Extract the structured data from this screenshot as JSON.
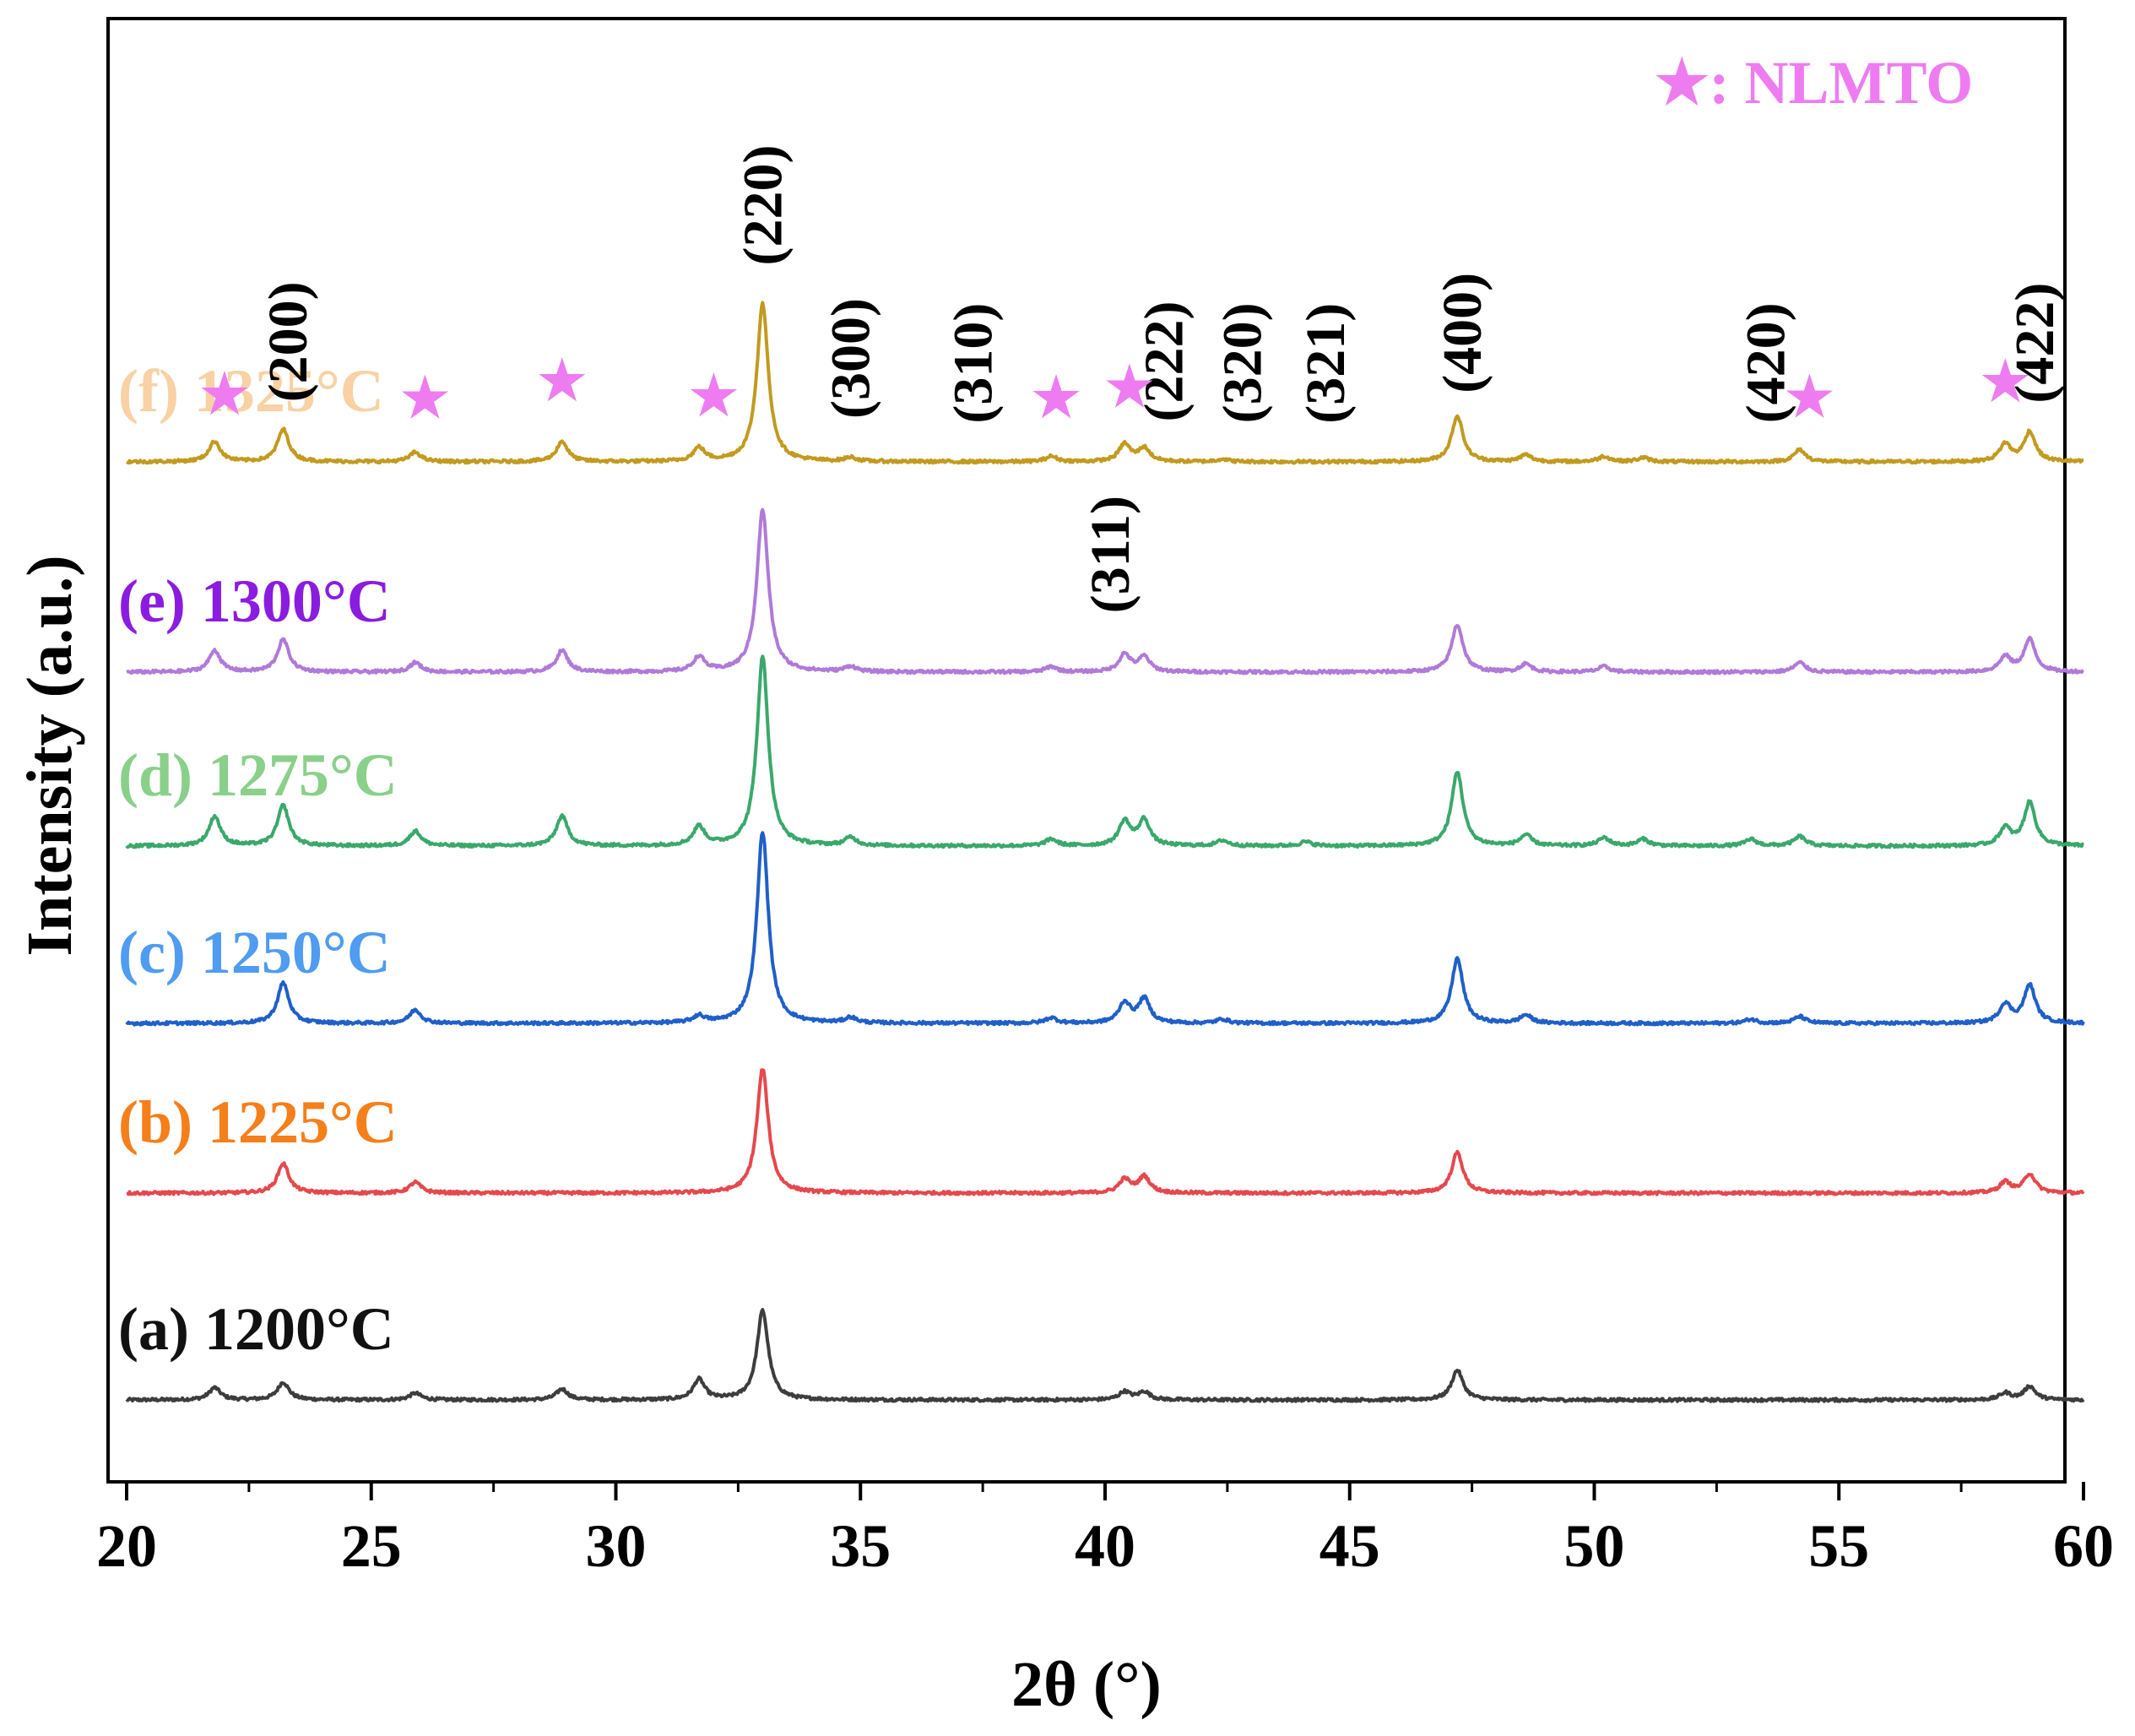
{
  "chart_data": {
    "type": "line",
    "title": "",
    "xlabel": "2θ (°)",
    "ylabel": "Intensity (a.u.)",
    "xlim": [
      20,
      60
    ],
    "xticks": [
      "20",
      "25",
      "30",
      "35",
      "40",
      "45",
      "50",
      "55",
      "60"
    ],
    "yticks": [],
    "series": [
      {
        "name": "(a) 1200°C",
        "color": "#3d3d3d",
        "baseline": 0,
        "peaks": [
          [
            21.8,
            9
          ],
          [
            23.2,
            13
          ],
          [
            25.9,
            5
          ],
          [
            28.9,
            8
          ],
          [
            31.7,
            15
          ],
          [
            33.0,
            66
          ],
          [
            40.4,
            6
          ],
          [
            40.8,
            6
          ],
          [
            47.2,
            22
          ],
          [
            58.4,
            5
          ],
          [
            58.9,
            10
          ]
        ]
      },
      {
        "name": "(b) 1225°C",
        "color": "#e5484d",
        "baseline": 245,
        "peaks": [
          [
            23.2,
            22
          ],
          [
            25.9,
            8
          ],
          [
            33.0,
            92
          ],
          [
            40.4,
            10
          ],
          [
            40.8,
            12
          ],
          [
            47.2,
            30
          ],
          [
            58.4,
            8
          ],
          [
            58.9,
            14
          ]
        ]
      },
      {
        "name": "(c) 1250°C",
        "color": "#1f5fc8",
        "baseline": 446,
        "peaks": [
          [
            23.2,
            30
          ],
          [
            25.9,
            10
          ],
          [
            31.7,
            5
          ],
          [
            33.0,
            142
          ],
          [
            34.8,
            4
          ],
          [
            38.9,
            4
          ],
          [
            40.4,
            15
          ],
          [
            40.8,
            18
          ],
          [
            42.4,
            3
          ],
          [
            47.2,
            48
          ],
          [
            48.6,
            6
          ],
          [
            53.2,
            3
          ],
          [
            54.2,
            5
          ],
          [
            58.4,
            14
          ],
          [
            58.9,
            28
          ]
        ]
      },
      {
        "name": "(d) 1275°C",
        "color": "#3aa86b",
        "baseline": 656,
        "peaks": [
          [
            21.8,
            22
          ],
          [
            23.2,
            30
          ],
          [
            25.9,
            11
          ],
          [
            28.9,
            22
          ],
          [
            31.7,
            14
          ],
          [
            33.0,
            140
          ],
          [
            34.8,
            6
          ],
          [
            38.9,
            5
          ],
          [
            40.4,
            18
          ],
          [
            40.8,
            19
          ],
          [
            42.4,
            4
          ],
          [
            44.1,
            3
          ],
          [
            47.2,
            55
          ],
          [
            48.6,
            8
          ],
          [
            50.2,
            6
          ],
          [
            51.0,
            5
          ],
          [
            53.2,
            5
          ],
          [
            54.2,
            7
          ],
          [
            58.4,
            13
          ],
          [
            58.9,
            32
          ]
        ]
      },
      {
        "name": "(e) 1300°C",
        "color": "#b07ad8",
        "baseline": 862,
        "peaks": [
          [
            21.8,
            16
          ],
          [
            23.2,
            24
          ],
          [
            25.9,
            7
          ],
          [
            28.9,
            16
          ],
          [
            31.7,
            11
          ],
          [
            33.0,
            120
          ],
          [
            34.8,
            4
          ],
          [
            38.9,
            4
          ],
          [
            40.4,
            13
          ],
          [
            40.8,
            11
          ],
          [
            47.2,
            35
          ],
          [
            48.6,
            6
          ],
          [
            50.2,
            4
          ],
          [
            54.2,
            7
          ],
          [
            58.4,
            11
          ],
          [
            58.9,
            24
          ]
        ]
      },
      {
        "name": "(f) 1325°C",
        "color": "#c29a1e",
        "baseline": 1111,
        "peaks": [
          [
            21.8,
            15
          ],
          [
            23.2,
            24
          ],
          [
            25.9,
            7
          ],
          [
            28.9,
            15
          ],
          [
            31.7,
            10
          ],
          [
            33.0,
            117
          ],
          [
            34.8,
            3
          ],
          [
            38.9,
            4
          ],
          [
            40.4,
            13
          ],
          [
            40.8,
            10
          ],
          [
            42.4,
            2
          ],
          [
            47.2,
            34
          ],
          [
            48.6,
            5
          ],
          [
            50.2,
            4
          ],
          [
            51.0,
            3
          ],
          [
            54.2,
            9
          ],
          [
            58.4,
            13
          ],
          [
            58.9,
            22
          ]
        ]
      }
    ],
    "series_label_colors": [
      "#111111",
      "#f57f1a",
      "#4f9cf0",
      "#8ad08a",
      "#8a1ce0",
      "#f8d1a4"
    ],
    "peak_labels": [
      {
        "text": "(200)",
        "x": 23.3
      },
      {
        "text": "(220)",
        "x": 33.0
      },
      {
        "text": "(300)",
        "x": 34.8
      },
      {
        "text": "(310)",
        "x": 37.3
      },
      {
        "text": "(311)",
        "x": 40.1
      },
      {
        "text": "(222)",
        "x": 41.2
      },
      {
        "text": "(320)",
        "x": 42.8
      },
      {
        "text": "(321)",
        "x": 44.5
      },
      {
        "text": "(400)",
        "x": 47.3
      },
      {
        "text": "(420)",
        "x": 53.5
      },
      {
        "text": "(422)",
        "x": 59.0
      }
    ],
    "star_markers": {
      "name": "NLMTO",
      "symbol": "★",
      "color": "#ee7cf0",
      "x": [
        22.0,
        26.1,
        28.9,
        32.0,
        39.0,
        40.5,
        54.4,
        58.4
      ]
    },
    "legend": {
      "text": "★: NLMTO",
      "position": "top-right"
    }
  }
}
